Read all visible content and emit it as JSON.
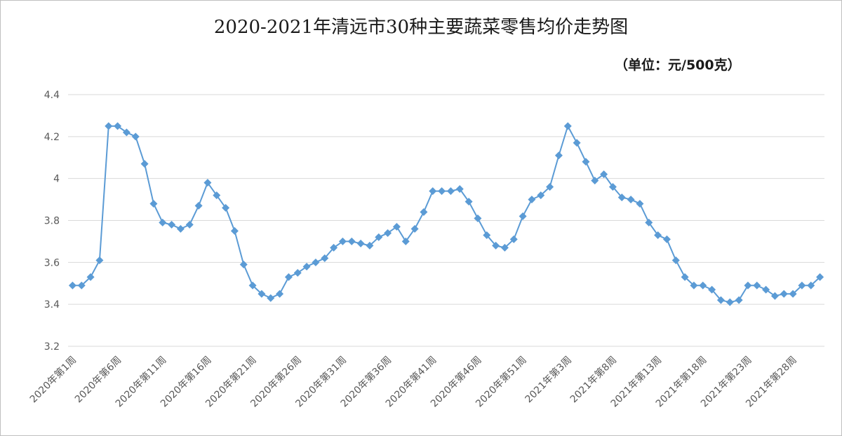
{
  "chart_data": {
    "type": "line",
    "title": "2020-2021年清远市30种主要蔬菜零售均价走势图",
    "unit_label": "（单位：元/500克）",
    "ylim": [
      3.2,
      4.4
    ],
    "y_ticks": [
      "3.2",
      "3.4",
      "3.6",
      "3.8",
      "4",
      "4.2",
      "4.4"
    ],
    "grid": true,
    "legend": "none",
    "x_tick_labels": [
      "2020年第1周",
      "2020年第6周",
      "2020年第11周",
      "2020年第16周",
      "2020年第21周",
      "2020年第26周",
      "2020年第31周",
      "2020年第36周",
      "2020年第41周",
      "2020年第46周",
      "2020年第51周",
      "2021年第3周",
      "2021年第8周",
      "2021年第13周",
      "2021年第18周",
      "2021年第23周",
      "2021年第28周"
    ],
    "x": [
      "2020年第1周",
      "2020年第2周",
      "2020年第3周",
      "2020年第4周",
      "2020年第5周",
      "2020年第6周",
      "2020年第7周",
      "2020年第8周",
      "2020年第9周",
      "2020年第10周",
      "2020年第11周",
      "2020年第12周",
      "2020年第13周",
      "2020年第14周",
      "2020年第15周",
      "2020年第16周",
      "2020年第17周",
      "2020年第18周",
      "2020年第19周",
      "2020年第20周",
      "2020年第21周",
      "2020年第22周",
      "2020年第23周",
      "2020年第24周",
      "2020年第25周",
      "2020年第26周",
      "2020年第27周",
      "2020年第28周",
      "2020年第29周",
      "2020年第30周",
      "2020年第31周",
      "2020年第32周",
      "2020年第33周",
      "2020年第34周",
      "2020年第35周",
      "2020年第36周",
      "2020年第37周",
      "2020年第38周",
      "2020年第39周",
      "2020年第40周",
      "2020年第41周",
      "2020年第42周",
      "2020年第43周",
      "2020年第44周",
      "2020年第45周",
      "2020年第46周",
      "2020年第47周",
      "2020年第48周",
      "2020年第49周",
      "2020年第50周",
      "2020年第51周",
      "2020年第52周",
      "2020年第53周",
      "2021年第1周",
      "2021年第2周",
      "2021年第3周",
      "2021年第4周",
      "2021年第5周",
      "2021年第6周",
      "2021年第7周",
      "2021年第8周",
      "2021年第9周",
      "2021年第10周",
      "2021年第11周",
      "2021年第12周",
      "2021年第13周",
      "2021年第14周",
      "2021年第15周",
      "2021年第16周",
      "2021年第17周",
      "2021年第18周",
      "2021年第19周",
      "2021年第20周",
      "2021年第21周",
      "2021年第22周",
      "2021年第23周",
      "2021年第24周",
      "2021年第25周",
      "2021年第26周",
      "2021年第27周",
      "2021年第28周",
      "2021年第29周",
      "2021年第30周",
      "2021年第31周"
    ],
    "series": [
      {
        "color": "#5b9bd5",
        "marker": "diamond",
        "values": [
          3.49,
          3.49,
          3.53,
          3.61,
          4.25,
          4.25,
          4.22,
          4.2,
          4.07,
          3.88,
          3.79,
          3.78,
          3.76,
          3.78,
          3.87,
          3.98,
          3.92,
          3.86,
          3.75,
          3.59,
          3.49,
          3.45,
          3.43,
          3.45,
          3.53,
          3.55,
          3.58,
          3.6,
          3.62,
          3.67,
          3.7,
          3.7,
          3.69,
          3.68,
          3.72,
          3.74,
          3.77,
          3.7,
          3.76,
          3.84,
          3.94,
          3.94,
          3.94,
          3.95,
          3.89,
          3.81,
          3.73,
          3.68,
          3.67,
          3.71,
          3.82,
          3.9,
          3.92,
          3.96,
          4.11,
          4.25,
          4.17,
          4.08,
          3.99,
          4.02,
          3.96,
          3.91,
          3.9,
          3.88,
          3.79,
          3.73,
          3.71,
          3.61,
          3.53,
          3.49,
          3.49,
          3.47,
          3.42,
          3.41,
          3.42,
          3.49,
          3.49,
          3.47,
          3.44,
          3.45,
          3.45,
          3.49,
          3.49,
          3.53
        ]
      }
    ]
  }
}
